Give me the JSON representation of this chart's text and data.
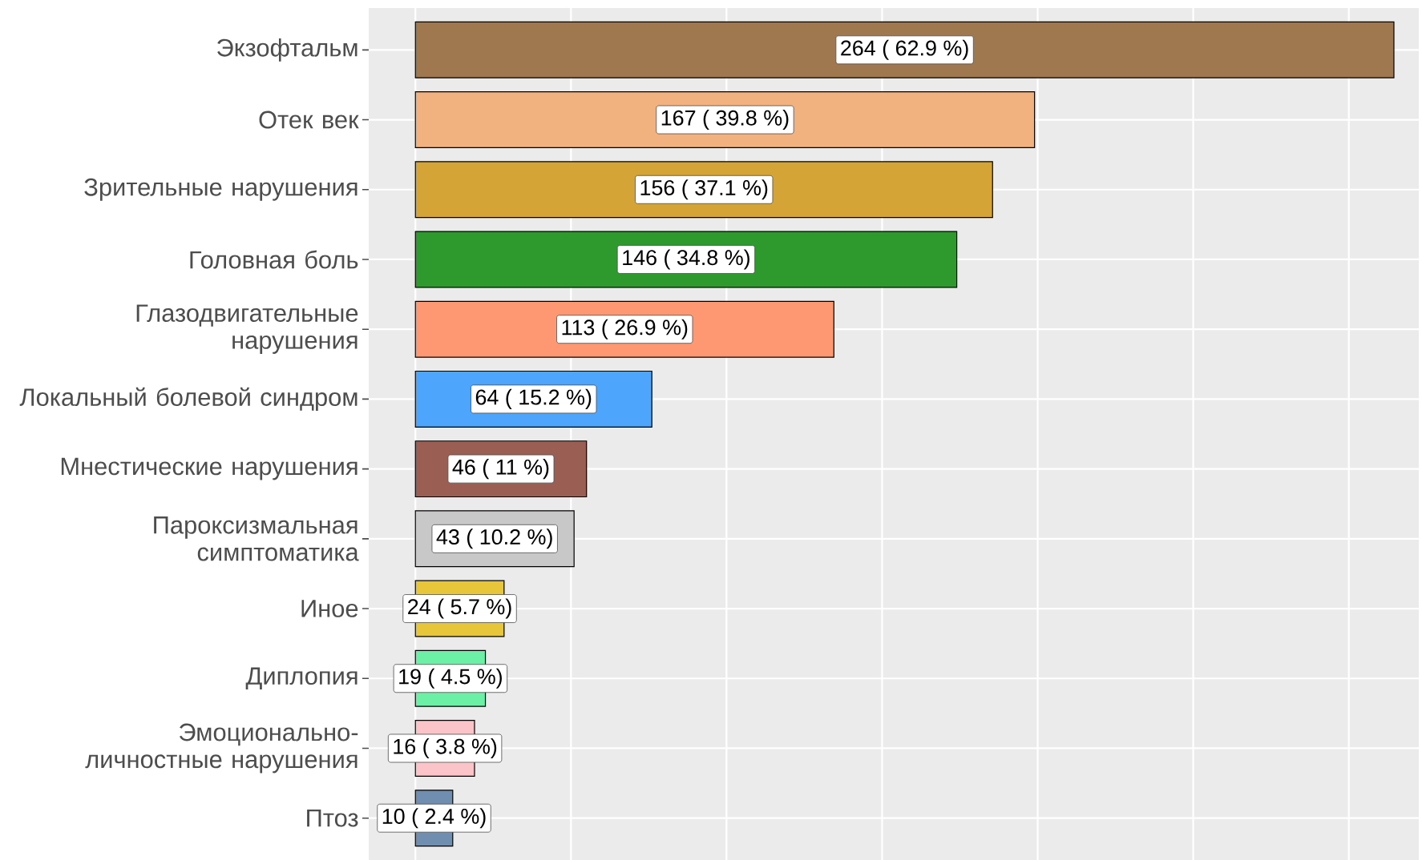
{
  "chart_data": {
    "type": "bar",
    "orientation": "horizontal",
    "categories": [
      "Экзофтальм",
      "Отек век",
      "Зрительные нарушения",
      "Головная боль",
      "Глазодвигательные нарушения",
      "Локальный болевой синдром",
      "Мнестические нарушения",
      "Пароксизмальная симптоматика",
      "Иное",
      "Диплопия",
      "Эмоционально-личностные нарушения",
      "Птоз"
    ],
    "values": [
      62.9,
      39.8,
      37.1,
      34.8,
      26.9,
      15.2,
      11,
      10.2,
      5.7,
      4.5,
      3.8,
      2.4
    ],
    "value_labels": [
      "264 ( 62.9 %)",
      "167 ( 39.8 %)",
      "156 ( 37.1 %)",
      "146 ( 34.8 %)",
      "113 ( 26.9 %)",
      "64 ( 15.2 %)",
      "46 ( 11 %)",
      "43 ( 10.2 %)",
      "24 ( 5.7 %)",
      "19 ( 4.5 %)",
      "16 ( 3.8 %)",
      "10 ( 2.4 %)"
    ],
    "colors": [
      "#a0784f",
      "#f2b27f",
      "#d4a536",
      "#2e9a2e",
      "#fd9872",
      "#4da5fc",
      "#9a5f52",
      "#c8c8c8",
      "#e8c63a",
      "#6cf0a6",
      "#fbc4c8",
      "#6f8eb0"
    ],
    "xlim": [
      -3,
      64.5
    ],
    "xticks": [
      {
        "value": 0,
        "label": null
      },
      {
        "value": 10,
        "label": null
      },
      {
        "value": 20,
        "label": null
      },
      {
        "value": 30,
        "label": null
      },
      {
        "value": 40,
        "label": null
      },
      {
        "value": 50,
        "label": null
      },
      {
        "value": 60,
        "label": null
      }
    ],
    "grid": true,
    "tick_labels": "y"
  }
}
